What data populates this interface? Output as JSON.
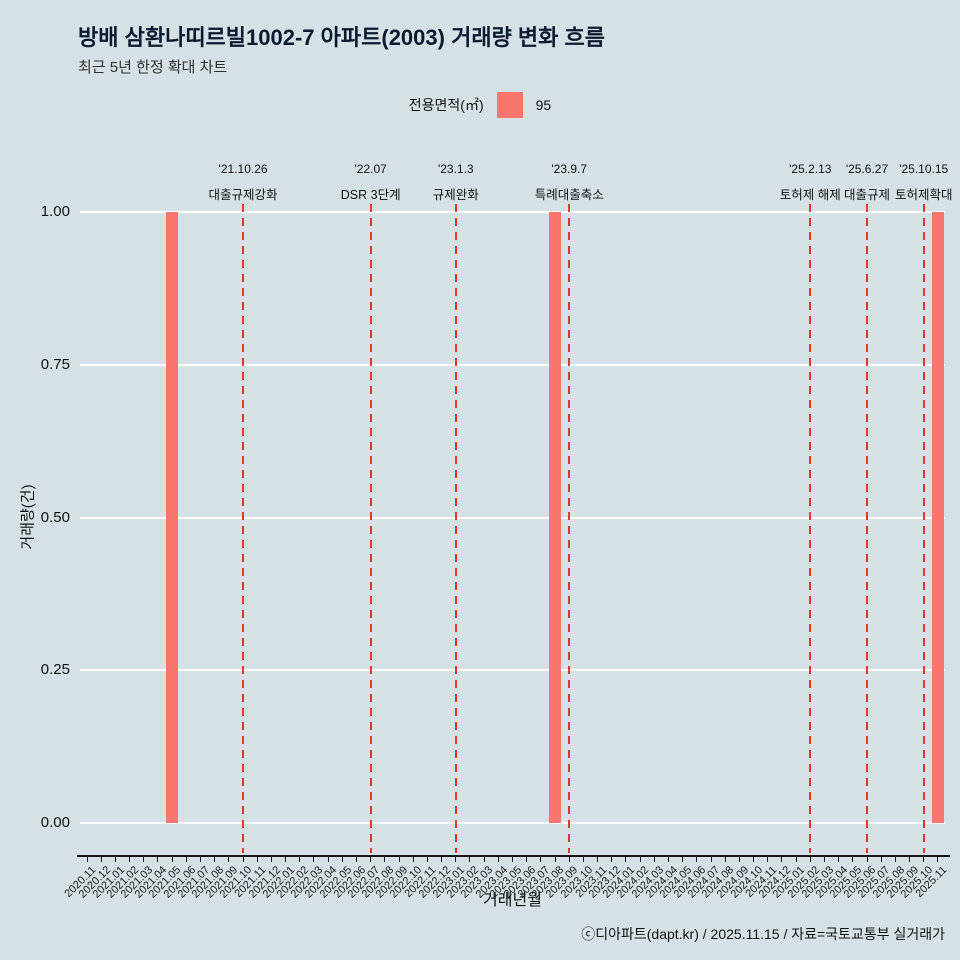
{
  "title": "방배 삼환나띠르빌1002-7 아파트(2003) 거래량 변화 흐름",
  "subtitle": "최근 5년 한정 확대 차트",
  "legend": {
    "label": "전용면적(㎡)",
    "value": "95",
    "color": "#F8766D"
  },
  "footer": "ⓒ디아파트(dapt.kr) / 2025.11.15 / 자료=국토교통부 실거래가",
  "colors": {
    "background": "#D6E1E6",
    "grid": "#FFFFFF",
    "bar": "#F8766D",
    "event_line": "#E8362D"
  },
  "chart_data": {
    "type": "bar",
    "title": "방배 삼환나띠르빌1002-7 아파트(2003) 거래량 변화 흐름",
    "subtitle": "최근 5년 한정 확대 차트",
    "xlabel": "거래년월",
    "ylabel": "거래량(건)",
    "ylim": [
      0,
      1.0
    ],
    "yticks": [
      0,
      0.25,
      0.5,
      0.75,
      1.0
    ],
    "series_name": "95",
    "bar_color": "#F8766D",
    "event_color": "#E8362D",
    "categories": [
      "2020.11",
      "2020.12",
      "2021.01",
      "2021.02",
      "2021.03",
      "2021.04",
      "2021.05",
      "2021.06",
      "2021.07",
      "2021.08",
      "2021.09",
      "2021.10",
      "2021.11",
      "2021.12",
      "2022.01",
      "2022.02",
      "2022.03",
      "2022.04",
      "2022.05",
      "2022.06",
      "2022.07",
      "2022.08",
      "2022.09",
      "2022.10",
      "2022.11",
      "2022.12",
      "2023.01",
      "2023.02",
      "2023.03",
      "2023.04",
      "2023.05",
      "2023.06",
      "2023.07",
      "2023.08",
      "2023.09",
      "2023.10",
      "2023.11",
      "2023.12",
      "2024.01",
      "2024.02",
      "2024.03",
      "2024.04",
      "2024.05",
      "2024.06",
      "2024.07",
      "2024.08",
      "2024.09",
      "2024.10",
      "2024.11",
      "2024.12",
      "2025.01",
      "2025.02",
      "2025.03",
      "2025.04",
      "2025.05",
      "2025.06",
      "2025.07",
      "2025.08",
      "2025.09",
      "2025.10",
      "2025.11"
    ],
    "values": [
      0,
      0,
      0,
      0,
      0,
      0,
      1,
      0,
      0,
      0,
      0,
      0,
      0,
      0,
      0,
      0,
      0,
      0,
      0,
      0,
      0,
      0,
      0,
      0,
      0,
      0,
      0,
      0,
      0,
      0,
      0,
      0,
      0,
      1,
      0,
      0,
      0,
      0,
      0,
      0,
      0,
      0,
      0,
      0,
      0,
      0,
      0,
      0,
      0,
      0,
      0,
      0,
      0,
      0,
      0,
      0,
      0,
      0,
      0,
      0,
      1
    ],
    "events": [
      {
        "date": "'21.10.26",
        "label": "대출규제강화",
        "month": "2021.10"
      },
      {
        "date": "'22.07",
        "label": "DSR 3단계",
        "month": "2022.07"
      },
      {
        "date": "'23.1.3",
        "label": "규제완화",
        "month": "2023.01"
      },
      {
        "date": "'23.9.7",
        "label": "특례대출축소",
        "month": "2023.09"
      },
      {
        "date": "'25.2.13",
        "label": "토허제 해제",
        "month": "2025.02"
      },
      {
        "date": "'25.6.27",
        "label": "대출규제",
        "month": "2025.06"
      },
      {
        "date": "'25.10.15",
        "label": "토허제확대",
        "month": "2025.10"
      }
    ]
  }
}
